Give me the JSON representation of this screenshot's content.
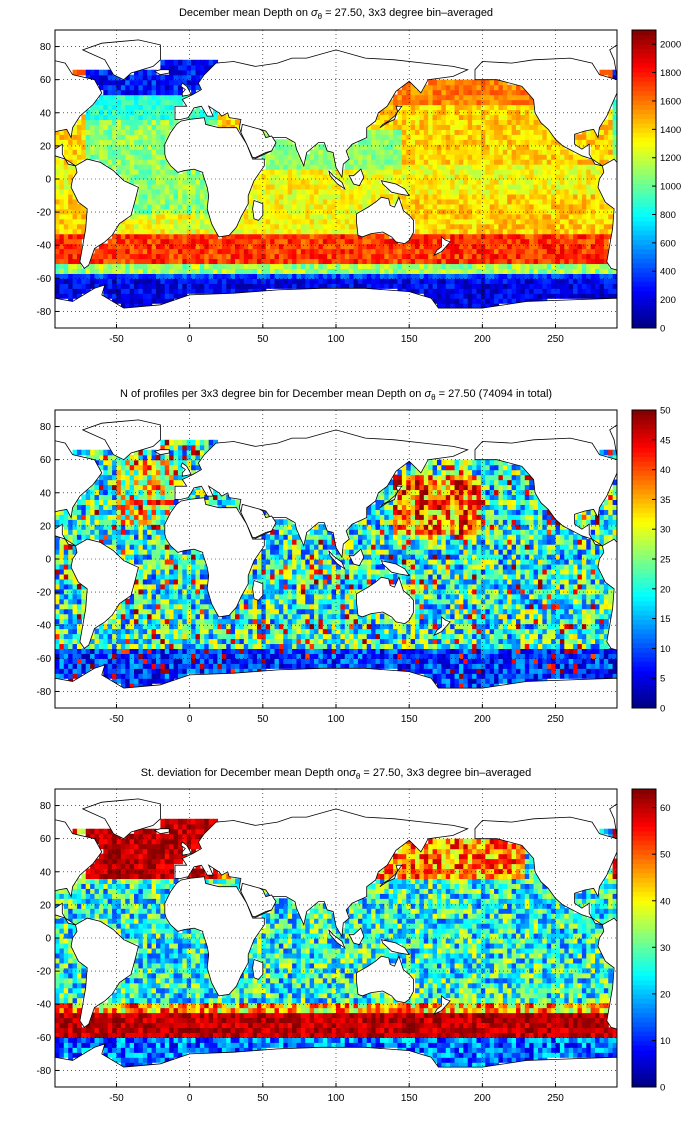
{
  "panels": [
    {
      "title_parts": [
        "December mean Depth on ",
        "σ",
        "θ",
        " = 27.50, 3x3 degree bin–averaged"
      ],
      "colorbar": {
        "min": 0,
        "max": 2100,
        "ticks": [
          0,
          200,
          400,
          600,
          800,
          1000,
          1200,
          1400,
          1600,
          1800,
          2000
        ]
      },
      "field": "depth"
    },
    {
      "title_parts": [
        "N of profiles per 3x3 degree bin for December mean Depth on ",
        "σ",
        "θ",
        " = 27.50 (74094 in total)"
      ],
      "colorbar": {
        "min": 0,
        "max": 50,
        "ticks": [
          0,
          5,
          10,
          15,
          20,
          25,
          30,
          35,
          40,
          45,
          50
        ]
      },
      "field": "count"
    },
    {
      "title_parts": [
        "St. deviation for December mean Depth on",
        "σ",
        "θ",
        " = 27.50, 3x3 degree bin–averaged"
      ],
      "colorbar": {
        "min": 0,
        "max": 64,
        "ticks": [
          0,
          10,
          20,
          30,
          40,
          50,
          60
        ]
      },
      "field": "std"
    }
  ],
  "axes": {
    "xlim": [
      -92,
      292
    ],
    "ylim": [
      -90,
      90
    ],
    "xticks": [
      -50,
      0,
      50,
      100,
      150,
      200,
      250
    ],
    "yticks": [
      -80,
      -60,
      -40,
      -20,
      0,
      20,
      40,
      60,
      80
    ],
    "grid": "dotted",
    "bin_size_deg": 3
  },
  "colormap": "jet"
}
